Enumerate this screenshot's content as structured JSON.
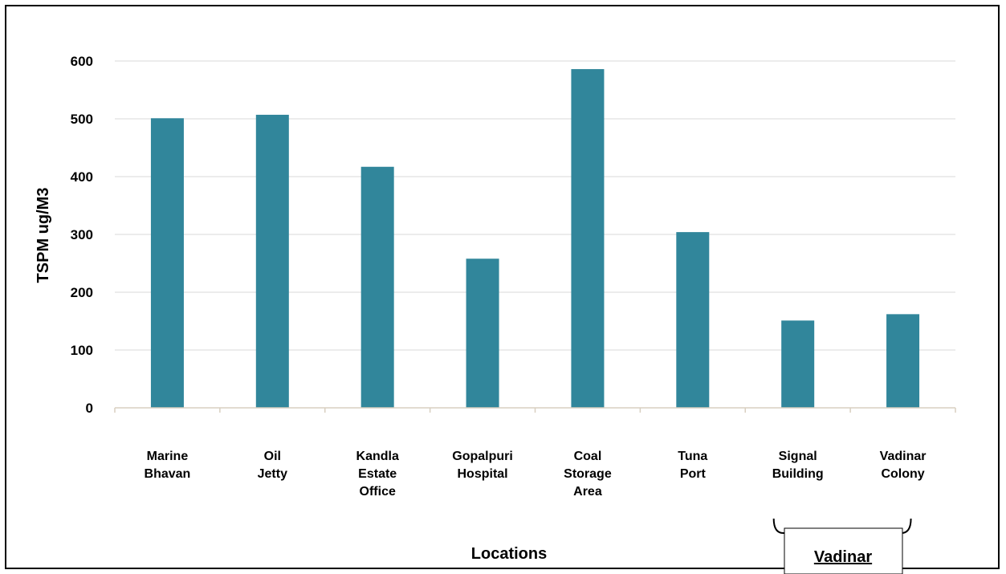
{
  "chart_data": {
    "type": "bar",
    "categories": [
      [
        "Marine",
        "Bhavan"
      ],
      [
        "Oil",
        "Jetty"
      ],
      [
        "Kandla",
        "Estate",
        "Office"
      ],
      [
        "Gopalpuri",
        "Hospital"
      ],
      [
        "Coal",
        "Storage",
        "Area"
      ],
      [
        "Tuna",
        "Port"
      ],
      [
        "Signal",
        "Building"
      ],
      [
        "Vadinar",
        "Colony"
      ]
    ],
    "values": [
      501,
      507,
      417,
      258,
      586,
      304,
      151,
      162
    ],
    "xlabel": "Locations",
    "ylabel": "TSPM ug/M3",
    "ylim": [
      0,
      600
    ],
    "yticks": [
      "0",
      "100",
      "200",
      "300",
      "400",
      "500",
      "600"
    ],
    "grid": true,
    "bar_color": "#31869b",
    "annotation": {
      "label": "Vadinar",
      "groups": [
        "Signal Building",
        "Vadinar Colony"
      ]
    }
  }
}
